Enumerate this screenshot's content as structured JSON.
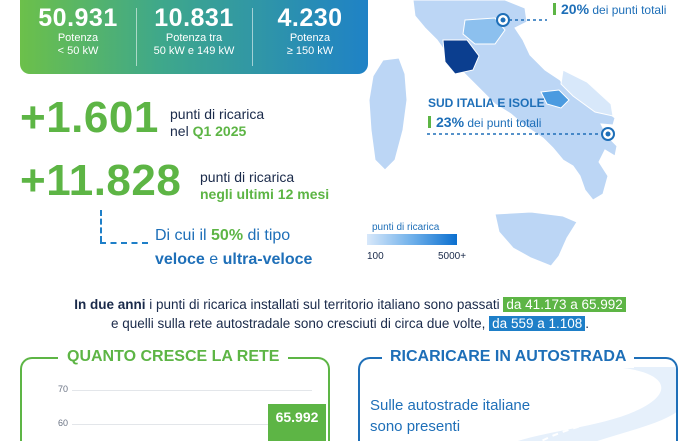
{
  "stats": [
    {
      "value": "50.931",
      "line1": "Potenza",
      "line2": "< 50 kW"
    },
    {
      "value": "10.831",
      "line1": "Potenza tra",
      "line2": "50 kW e 149 kW"
    },
    {
      "value": "4.230",
      "line1": "Potenza",
      "line2": "≥ 150 kW"
    }
  ],
  "growth_q1": {
    "value": "+1.601",
    "line1": "punti di ricarica",
    "line2_prefix": "nel ",
    "line2_highlight": "Q1 2025"
  },
  "growth_12m": {
    "value": "+11.828",
    "line1": "punti di ricarica",
    "line2_highlight": "negli ultimi 12 mesi"
  },
  "fast_charging": {
    "prefix": "Di cui il ",
    "percent": "50%",
    "middle": " di tipo",
    "type1": "veloce",
    "conj": " e ",
    "type2": "ultra-veloce"
  },
  "map": {
    "north_pct": "20%",
    "north_suffix": " dei punti totali",
    "south_label": "SUD ITALIA E ISOLE",
    "south_pct": "23%",
    "south_suffix": " dei punti totali",
    "legend_title": "punti di ricarica",
    "legend_min": "100",
    "legend_max": "5000+",
    "colors": {
      "light": "#d8e8fa",
      "mid": "#8cc0ee",
      "dark": "#0b6fcf",
      "highlight_region": "#0b3e8f"
    }
  },
  "summary": {
    "bold_start": "In due anni",
    "text1": " i punti di ricarica installati sul territorio italiano sono passati ",
    "range1": "da 41.173 a 65.992",
    "text2": "e quelli sulla rete autostradale sono cresciuti di circa due volte, ",
    "range2": "da 559 a 1.108",
    "end": "."
  },
  "network_growth": {
    "title": "QUANTO CRESCE LA RETE",
    "latest_label": "65.992"
  },
  "chart_data": {
    "type": "bar",
    "title": "QUANTO CRESCE LA RETE",
    "y_ticks": [
      60,
      70
    ],
    "values_visible": [
      65.992
    ],
    "data_labels": [
      "65.992"
    ],
    "note": "chart cropped at bottom; only tick labels 70 and 60 and the last bar are visible"
  },
  "highway": {
    "title": "RICARICARE IN AUTOSTRADA",
    "line1": "Sulle autostrade italiane",
    "line2": "sono presenti"
  },
  "accent_colors": {
    "green": "#5db545",
    "blue": "#1e6fb8"
  }
}
